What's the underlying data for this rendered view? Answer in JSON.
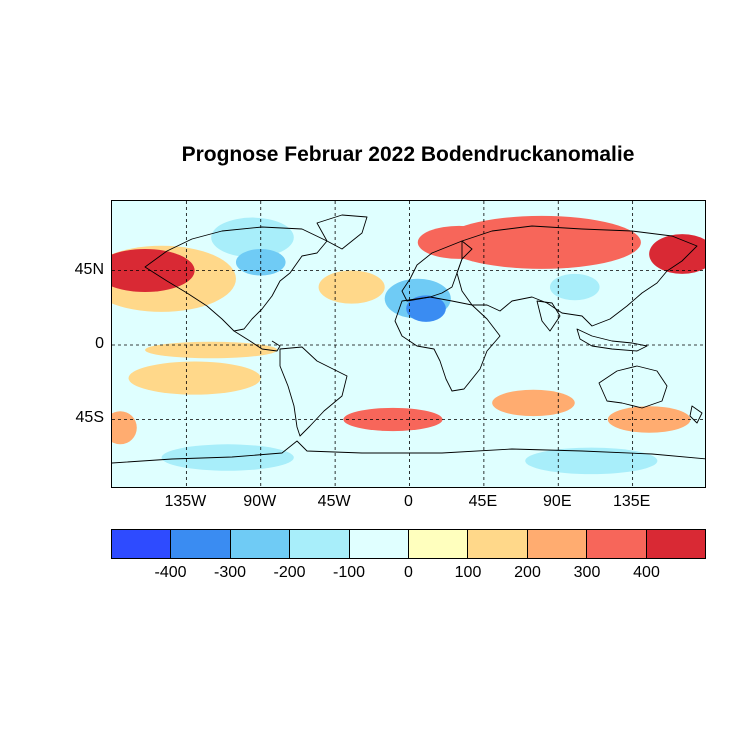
{
  "title": "Prognose Februar 2022 Bodendruckanomalie",
  "map": {
    "projection": "equirectangular",
    "lon_range": [
      -180,
      180
    ],
    "lat_range": [
      -87,
      87
    ],
    "gridlines": "dashed",
    "x_ticks": [
      {
        "lon": -135,
        "label": "135W"
      },
      {
        "lon": -90,
        "label": "90W"
      },
      {
        "lon": -45,
        "label": "45W"
      },
      {
        "lon": 0,
        "label": "0"
      },
      {
        "lon": 45,
        "label": "45E"
      },
      {
        "lon": 90,
        "label": "90E"
      },
      {
        "lon": 135,
        "label": "135E"
      }
    ],
    "y_ticks": [
      {
        "lat": 45,
        "label": "45N"
      },
      {
        "lat": 0,
        "label": "0"
      },
      {
        "lat": -45,
        "label": "45S"
      }
    ],
    "anomaly_regions": [
      {
        "name": "North Pacific high",
        "lon": -160,
        "lat": 45,
        "rlon": 30,
        "rlat": 13,
        "value": 400
      },
      {
        "name": "North Pacific ring",
        "lon": -150,
        "lat": 40,
        "rlon": 45,
        "rlat": 20,
        "value": 150
      },
      {
        "name": "Eurasia high",
        "lon": 80,
        "lat": 62,
        "rlon": 60,
        "rlat": 16,
        "value": 350
      },
      {
        "name": "Siberia east high",
        "lon": 165,
        "lat": 55,
        "rlon": 20,
        "rlat": 12,
        "value": 400
      },
      {
        "name": "Europe high",
        "lon": 30,
        "lat": 62,
        "rlon": 25,
        "rlat": 10,
        "value": 300
      },
      {
        "name": "North Atlantic positive",
        "lon": -35,
        "lat": 35,
        "rlon": 20,
        "rlat": 10,
        "value": 150
      },
      {
        "name": "North Africa low",
        "lon": 5,
        "lat": 28,
        "rlon": 20,
        "rlat": 12,
        "value": -300
      },
      {
        "name": "North Africa low core",
        "lon": 10,
        "lat": 22,
        "rlon": 12,
        "rlat": 8,
        "value": -400
      },
      {
        "name": "Canada low",
        "lon": -95,
        "lat": 65,
        "rlon": 25,
        "rlat": 12,
        "value": -150
      },
      {
        "name": "North America low",
        "lon": -90,
        "lat": 50,
        "rlon": 15,
        "rlat": 8,
        "value": -250
      },
      {
        "name": "Central Asia low",
        "lon": 100,
        "lat": 35,
        "rlon": 15,
        "rlat": 8,
        "value": -150
      },
      {
        "name": "South Pacific positive",
        "lon": -130,
        "lat": -20,
        "rlon": 40,
        "rlat": 10,
        "value": 100
      },
      {
        "name": "South Atlantic positive",
        "lon": -10,
        "lat": -45,
        "rlon": 30,
        "rlat": 7,
        "value": 300
      },
      {
        "name": "South Indian positive",
        "lon": 75,
        "lat": -35,
        "rlon": 25,
        "rlat": 8,
        "value": 200
      },
      {
        "name": "Australia south positive",
        "lon": 145,
        "lat": -45,
        "rlon": 25,
        "rlat": 8,
        "value": 250
      },
      {
        "name": "Southern Ocean low",
        "lon": 110,
        "lat": -70,
        "rlon": 40,
        "rlat": 8,
        "value": -200
      },
      {
        "name": "Antarctic low west",
        "lon": -110,
        "lat": -68,
        "rlon": 40,
        "rlat": 8,
        "value": -150
      },
      {
        "name": "South Pacific east positive",
        "lon": -175,
        "lat": -50,
        "rlon": 10,
        "rlat": 10,
        "value": 250
      },
      {
        "name": "Tropical Pacific positive",
        "lon": -120,
        "lat": -3,
        "rlon": 40,
        "rlat": 5,
        "value": 100
      }
    ]
  },
  "colorbar": {
    "colors": [
      "#2e4bff",
      "#3a8cf2",
      "#6fcbf5",
      "#a8eefa",
      "#e0ffff",
      "#ffffbe",
      "#ffd88a",
      "#ffac70",
      "#f7665a",
      "#d92934"
    ],
    "bounds": [
      -500,
      -400,
      -300,
      -200,
      -100,
      0,
      100,
      200,
      300,
      400,
      500
    ],
    "tick_labels": [
      "-400",
      "-300",
      "-200",
      "-100",
      "0",
      "100",
      "200",
      "300",
      "400"
    ]
  }
}
